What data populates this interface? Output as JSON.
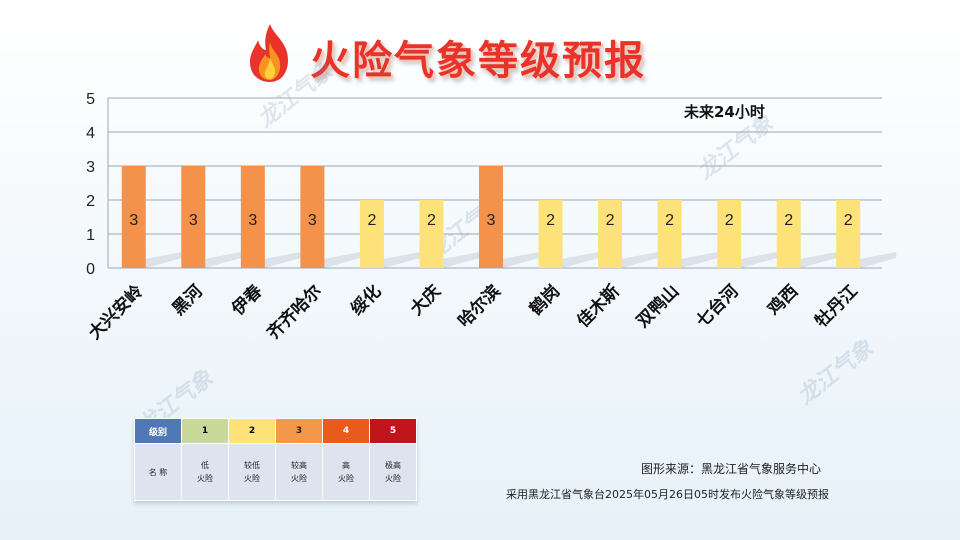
{
  "title": "火险气象等级预报",
  "subtitle": "未来24小时",
  "watermark": "龙江气象",
  "chart_data": {
    "type": "bar",
    "categories": [
      "大兴安岭",
      "黑河",
      "伊春",
      "齐齐哈尔",
      "绥化",
      "大庆",
      "哈尔滨",
      "鹤岗",
      "佳木斯",
      "双鸭山",
      "七台河",
      "鸡西",
      "牡丹江"
    ],
    "values": [
      3,
      3,
      3,
      3,
      2,
      2,
      3,
      2,
      2,
      2,
      2,
      2,
      2
    ],
    "yticks": [
      "0",
      "1",
      "2",
      "3",
      "4",
      "5"
    ],
    "ylim": [
      0,
      5
    ],
    "grid": true,
    "level_colors": {
      "2": "#fde27a",
      "3": "#f4914a"
    }
  },
  "legend": {
    "header_label": "级别",
    "name_label": "名 称",
    "levels": [
      {
        "level": "1",
        "name_line1": "低",
        "name_line2": "火险",
        "color": "#c8d99a"
      },
      {
        "level": "2",
        "name_line1": "较低",
        "name_line2": "火险",
        "color": "#fbe37a"
      },
      {
        "level": "3",
        "name_line1": "较高",
        "name_line2": "火险",
        "color": "#f4994c"
      },
      {
        "level": "4",
        "name_line1": "高",
        "name_line2": "火险",
        "color": "#e85a1e"
      },
      {
        "level": "5",
        "name_line1": "极高",
        "name_line2": "火险",
        "color": "#c0141b"
      }
    ],
    "header_color": "#4f78b4"
  },
  "source": "图形来源：黑龙江省气象服务中心",
  "note": "采用黑龙江省气象台2025年05月26日05时发布火险气象等级预报"
}
